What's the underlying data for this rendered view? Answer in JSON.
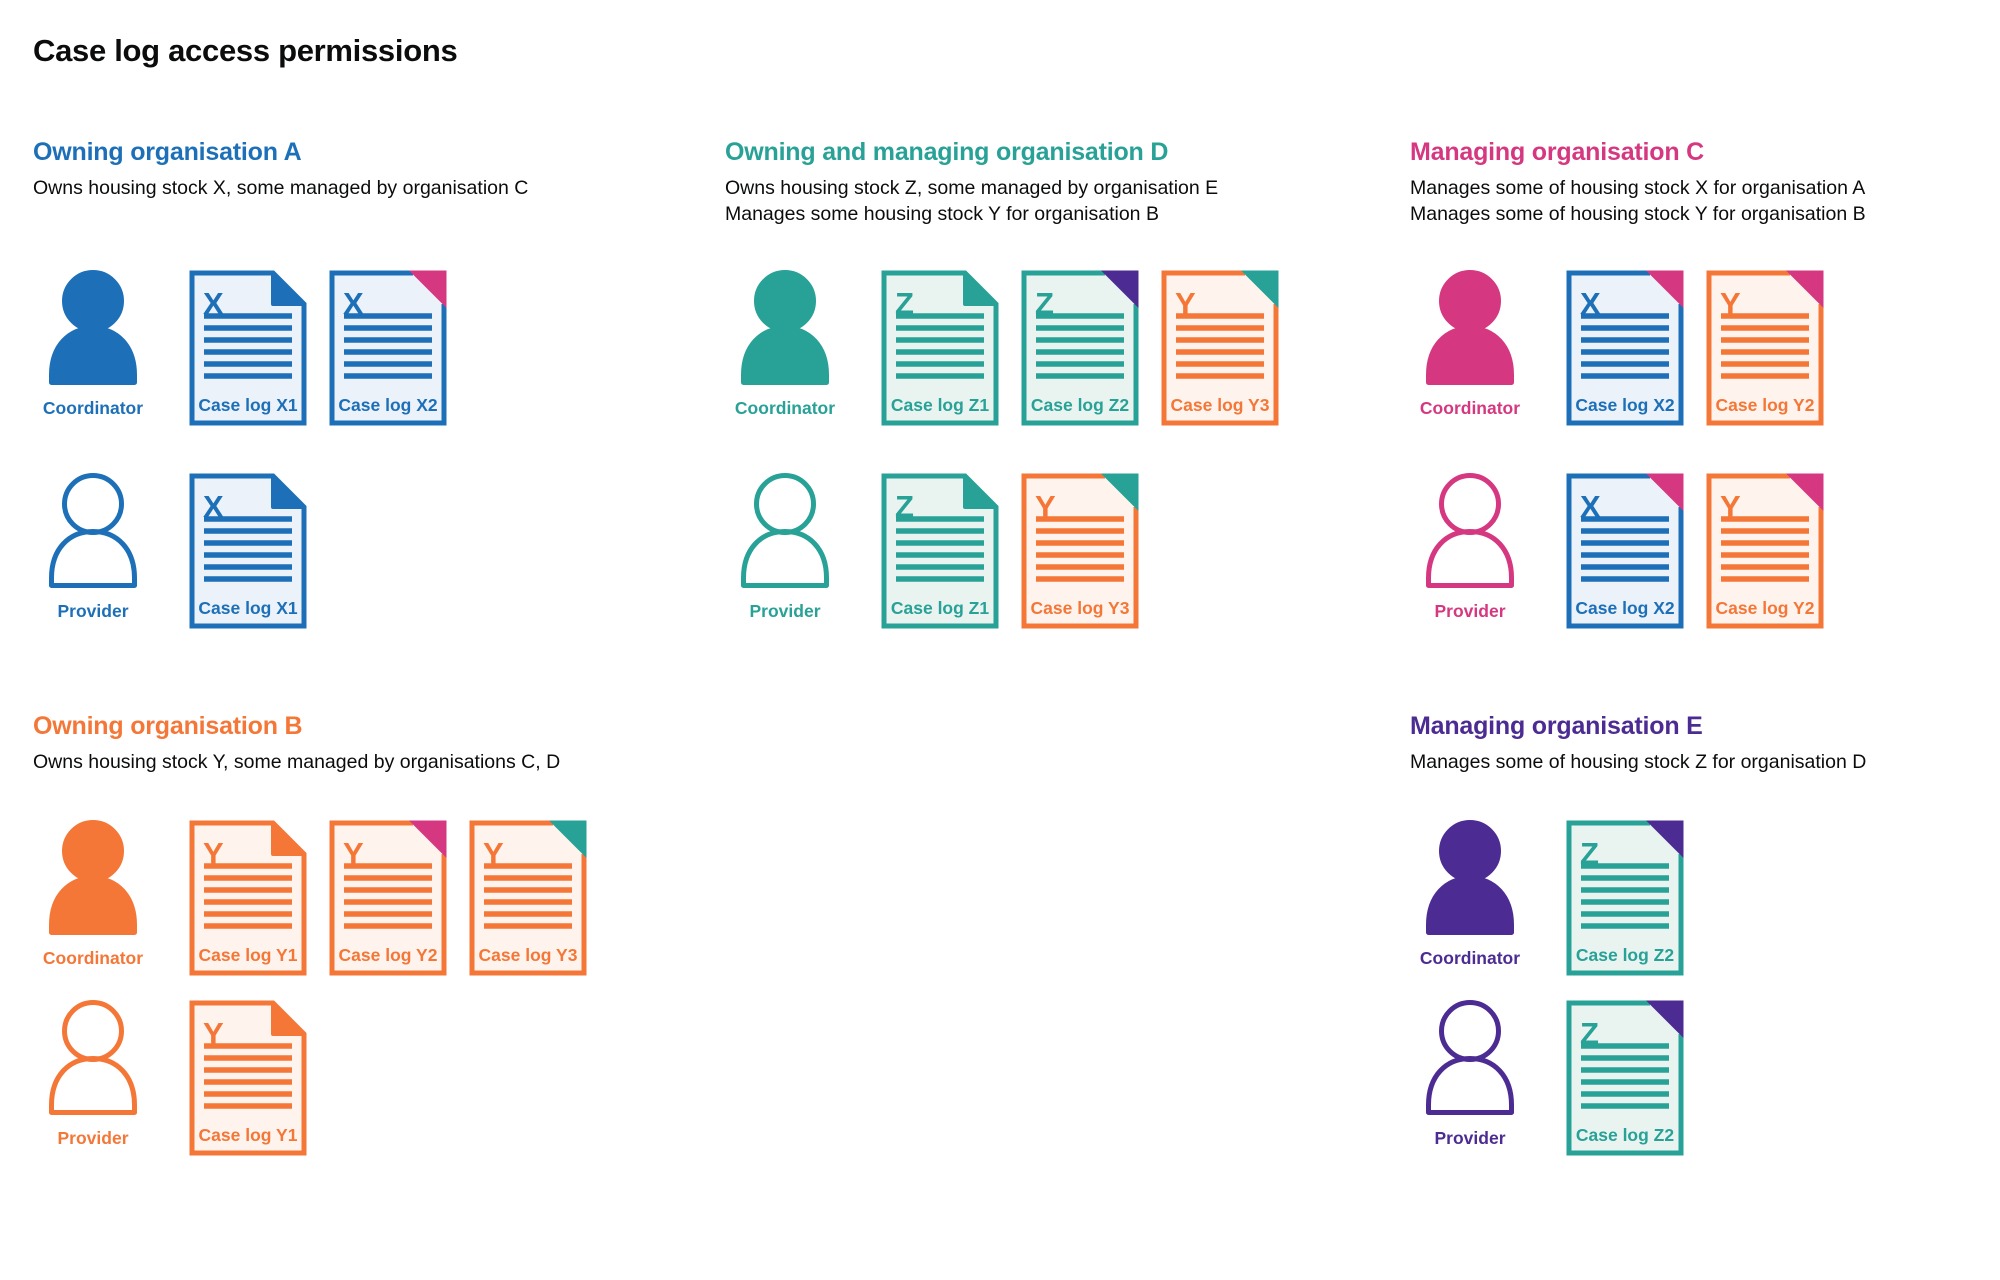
{
  "title": "Case log access permissions",
  "colors": {
    "blue": "#1d70b8",
    "teal": "#28a197",
    "pink": "#d53880",
    "orange": "#f47738",
    "purple": "#4c2c92",
    "blue_light": "#ecf2f9",
    "teal_light": "#e9f4f1",
    "orange_light": "#fef4ed",
    "text": "#0b0c0c"
  },
  "roles": {
    "coordinator": "Coordinator",
    "provider": "Provider"
  },
  "organisations": [
    {
      "id": "org-a",
      "name": "Owning organisation A",
      "color": "blue",
      "description": [
        "Owns housing stock X, some managed by organisation C"
      ],
      "rows": [
        {
          "role": "Coordinator",
          "person": "filled",
          "docs": [
            {
              "label": "Case log X1",
              "letter": "X",
              "color": "blue",
              "fold": "blue",
              "fold_style": "self"
            },
            {
              "label": "Case log X2",
              "letter": "X",
              "color": "blue",
              "fold": "pink",
              "fold_style": "other"
            }
          ]
        },
        {
          "role": "Provider",
          "person": "outline",
          "docs": [
            {
              "label": "Case log X1",
              "letter": "X",
              "color": "blue",
              "fold": "blue",
              "fold_style": "self"
            }
          ]
        }
      ]
    },
    {
      "id": "org-d",
      "name": "Owning and managing organisation D",
      "color": "teal",
      "description": [
        "Owns housing stock Z, some managed by organisation E",
        "Manages some housing stock Y for organisation B"
      ],
      "rows": [
        {
          "role": "Coordinator",
          "person": "filled",
          "docs": [
            {
              "label": "Case log Z1",
              "letter": "Z",
              "color": "teal",
              "fold": "teal",
              "fold_style": "self"
            },
            {
              "label": "Case log Z2",
              "letter": "Z",
              "color": "teal",
              "fold": "purple",
              "fold_style": "other"
            },
            {
              "label": "Case log Y3",
              "letter": "Y",
              "color": "orange",
              "fold": "teal",
              "fold_style": "other"
            }
          ]
        },
        {
          "role": "Provider",
          "person": "outline",
          "docs": [
            {
              "label": "Case log Z1",
              "letter": "Z",
              "color": "teal",
              "fold": "teal",
              "fold_style": "self"
            },
            {
              "label": "Case log Y3",
              "letter": "Y",
              "color": "orange",
              "fold": "teal",
              "fold_style": "other"
            }
          ]
        }
      ]
    },
    {
      "id": "org-c",
      "name": "Managing organisation C",
      "color": "pink",
      "description": [
        "Manages some of housing stock X for organisation A",
        "Manages some of housing stock Y for organisation B"
      ],
      "rows": [
        {
          "role": "Coordinator",
          "person": "filled",
          "docs": [
            {
              "label": "Case log X2",
              "letter": "X",
              "color": "blue",
              "fold": "pink",
              "fold_style": "other"
            },
            {
              "label": "Case log Y2",
              "letter": "Y",
              "color": "orange",
              "fold": "pink",
              "fold_style": "other"
            }
          ]
        },
        {
          "role": "Provider",
          "person": "outline",
          "docs": [
            {
              "label": "Case log X2",
              "letter": "X",
              "color": "blue",
              "fold": "pink",
              "fold_style": "other"
            },
            {
              "label": "Case log Y2",
              "letter": "Y",
              "color": "orange",
              "fold": "pink",
              "fold_style": "other"
            }
          ]
        }
      ]
    },
    {
      "id": "org-b",
      "name": "Owning organisation B",
      "color": "orange",
      "description": [
        "Owns housing stock Y, some managed by organisations C, D"
      ],
      "rows": [
        {
          "role": "Coordinator",
          "person": "filled",
          "docs": [
            {
              "label": "Case log Y1",
              "letter": "Y",
              "color": "orange",
              "fold": "orange",
              "fold_style": "self"
            },
            {
              "label": "Case log Y2",
              "letter": "Y",
              "color": "orange",
              "fold": "pink",
              "fold_style": "other"
            },
            {
              "label": "Case log Y3",
              "letter": "Y",
              "color": "orange",
              "fold": "teal",
              "fold_style": "other"
            }
          ]
        },
        {
          "role": "Provider",
          "person": "outline",
          "docs": [
            {
              "label": "Case log Y1",
              "letter": "Y",
              "color": "orange",
              "fold": "orange",
              "fold_style": "self"
            }
          ]
        }
      ]
    },
    {
      "id": "org-e",
      "name": "Managing organisation E",
      "color": "purple",
      "description": [
        "Manages some of housing stock Z for organisation D"
      ],
      "rows": [
        {
          "role": "Coordinator",
          "person": "filled",
          "docs": [
            {
              "label": "Case log Z2",
              "letter": "Z",
              "color": "teal",
              "fold": "purple",
              "fold_style": "other"
            }
          ]
        },
        {
          "role": "Provider",
          "person": "outline",
          "docs": [
            {
              "label": "Case log Z2",
              "letter": "Z",
              "color": "teal",
              "fold": "purple",
              "fold_style": "other"
            }
          ]
        }
      ]
    }
  ]
}
